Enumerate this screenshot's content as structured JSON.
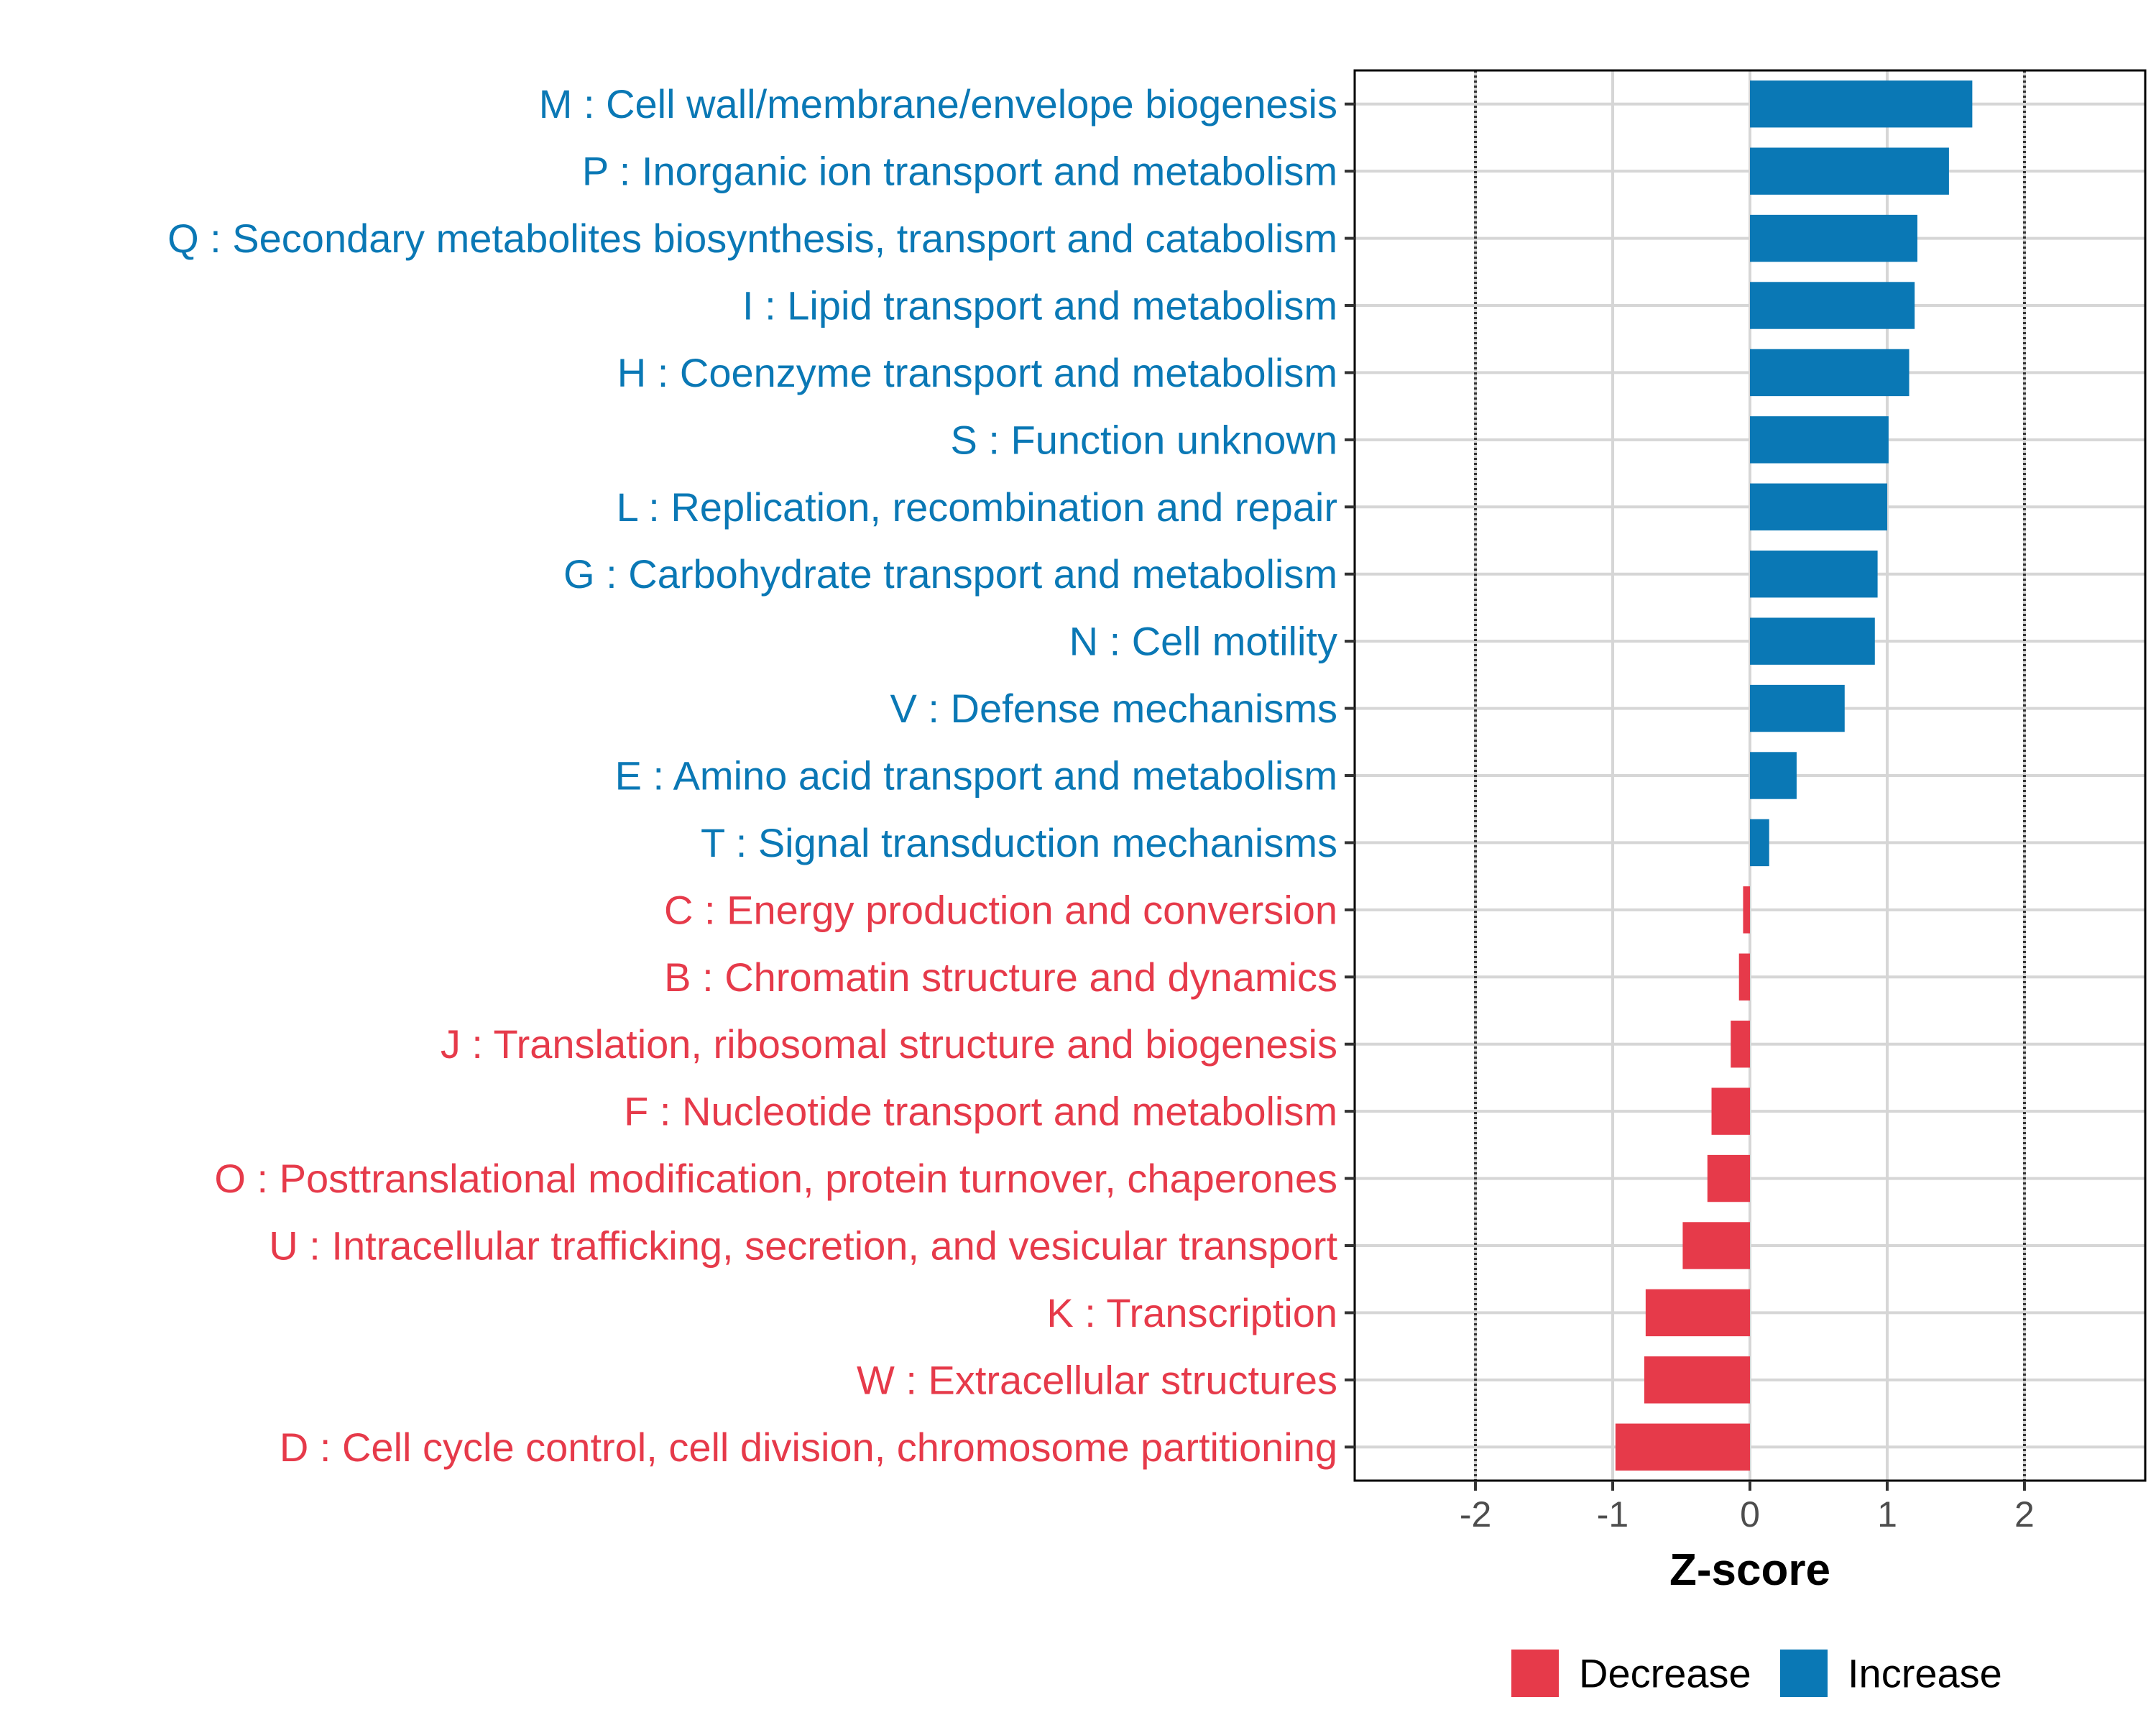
{
  "chart_data": {
    "type": "bar",
    "orientation": "horizontal",
    "xlabel": "Z-score",
    "xlim": [
      -2.88,
      2.88
    ],
    "xticks": [
      -2,
      -1,
      0,
      1,
      2
    ],
    "xtick_labels": [
      "-2",
      "-1",
      "0",
      "1",
      "2"
    ],
    "reference_lines": [
      -2,
      2
    ],
    "grid": true,
    "colors": {
      "Decrease": "#e63a4a",
      "Increase": "#0a78b5"
    },
    "legend": {
      "position": "bottom",
      "entries": [
        "Decrease",
        "Increase"
      ]
    },
    "categories": [
      {
        "label": "M : Cell wall/membrane/envelope biogenesis",
        "value": 1.62,
        "group": "Increase"
      },
      {
        "label": "P : Inorganic ion transport and metabolism",
        "value": 1.45,
        "group": "Increase"
      },
      {
        "label": "Q : Secondary metabolites biosynthesis, transport and catabolism",
        "value": 1.22,
        "group": "Increase"
      },
      {
        "label": "I : Lipid transport and metabolism",
        "value": 1.2,
        "group": "Increase"
      },
      {
        "label": "H : Coenzyme transport and metabolism",
        "value": 1.16,
        "group": "Increase"
      },
      {
        "label": "S : Function unknown",
        "value": 1.01,
        "group": "Increase"
      },
      {
        "label": "L : Replication, recombination and repair",
        "value": 1.0,
        "group": "Increase"
      },
      {
        "label": "G : Carbohydrate transport and metabolism",
        "value": 0.93,
        "group": "Increase"
      },
      {
        "label": "N : Cell motility",
        "value": 0.91,
        "group": "Increase"
      },
      {
        "label": "V : Defense mechanisms",
        "value": 0.69,
        "group": "Increase"
      },
      {
        "label": "E : Amino acid transport and metabolism",
        "value": 0.34,
        "group": "Increase"
      },
      {
        "label": "T : Signal transduction mechanisms",
        "value": 0.14,
        "group": "Increase"
      },
      {
        "label": "C : Energy production and conversion",
        "value": -0.05,
        "group": "Decrease"
      },
      {
        "label": "B : Chromatin structure and dynamics",
        "value": -0.08,
        "group": "Decrease"
      },
      {
        "label": "J : Translation, ribosomal structure and biogenesis",
        "value": -0.14,
        "group": "Decrease"
      },
      {
        "label": "F : Nucleotide transport and metabolism",
        "value": -0.28,
        "group": "Decrease"
      },
      {
        "label": "O : Posttranslational modification, protein turnover, chaperones",
        "value": -0.31,
        "group": "Decrease"
      },
      {
        "label": "U : Intracellular trafficking, secretion, and vesicular transport",
        "value": -0.49,
        "group": "Decrease"
      },
      {
        "label": "K : Transcription",
        "value": -0.76,
        "group": "Decrease"
      },
      {
        "label": "W : Extracellular structures",
        "value": -0.77,
        "group": "Decrease"
      },
      {
        "label": "D : Cell cycle control, cell division, chromosome partitioning",
        "value": -0.98,
        "group": "Decrease"
      }
    ]
  }
}
